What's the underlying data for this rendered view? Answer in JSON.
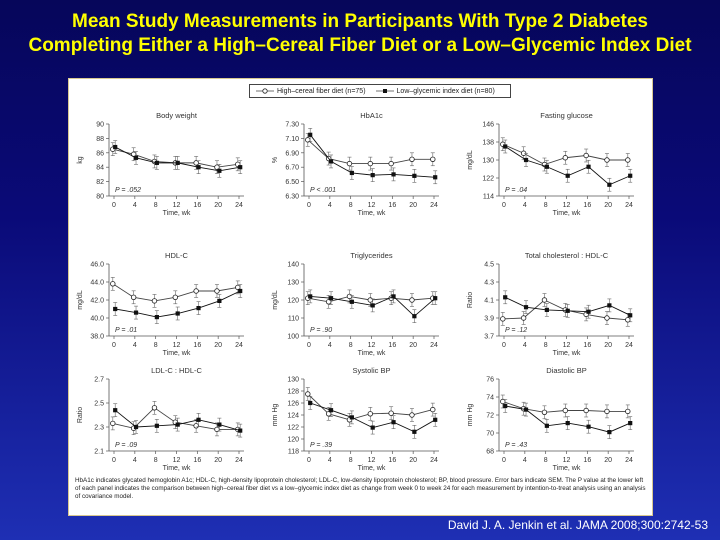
{
  "title_line1": "Mean Study Measurements in Participants With Type 2 Diabetes",
  "title_line2": "Completing Either a High–Cereal Fiber Diet or a Low–Glycemic Index Diet",
  "legend": {
    "high": "High–cereal fiber diet (n=75)",
    "low": "Low–glycemic index diet (n=80)"
  },
  "footnote": "HbA1c indicates glycated hemoglobin A1c; HDL-C, high-density lipoprotein cholesterol; LDL-C, low-density lipoprotein cholesterol; BP, blood pressure. Error bars indicate SEM. The P value at the lower left of each panel indicates the comparison between high–cereal fiber diet vs a low–glycemic index diet as change from week 0 to week 24 for each measurement by intention-to-treat analysis using an analysis of covariance model.",
  "citation": "David J. A. Jenkin et al. JAMA 2008;300:2742-53",
  "chart_data": [
    {
      "type": "line",
      "title": "Body weight",
      "ylabel": "kg",
      "xlabel": "Time, wk",
      "ylim": [
        80,
        90
      ],
      "yticks": [
        80,
        82,
        84,
        86,
        88,
        90
      ],
      "x": [
        0,
        4,
        8,
        12,
        16,
        20,
        24
      ],
      "p": "P = .052",
      "series": [
        {
          "key": "high",
          "values": [
            86.5,
            85.8,
            84.8,
            84.6,
            84.6,
            84.0,
            84.4
          ]
        },
        {
          "key": "low",
          "values": [
            86.8,
            85.3,
            84.6,
            84.6,
            84.0,
            83.5,
            84.0
          ]
        }
      ]
    },
    {
      "type": "line",
      "title": "HbA1c",
      "ylabel": "%",
      "xlabel": "Time, wk",
      "ylim": [
        6.3,
        7.3
      ],
      "yticks": [
        "6.30",
        "6.50",
        "6.70",
        "6.90",
        "7.10",
        "7.30"
      ],
      "x": [
        0,
        4,
        8,
        12,
        16,
        20,
        24
      ],
      "p": "P < .001",
      "series": [
        {
          "key": "high",
          "values": [
            7.08,
            6.82,
            6.75,
            6.75,
            6.75,
            6.81,
            6.81
          ]
        },
        {
          "key": "low",
          "values": [
            7.15,
            6.78,
            6.62,
            6.59,
            6.6,
            6.58,
            6.56
          ]
        }
      ]
    },
    {
      "type": "line",
      "title": "Fasting glucose",
      "ylabel": "mg/dL",
      "xlabel": "Time, wk",
      "ylim": [
        114,
        146
      ],
      "yticks": [
        114,
        122,
        130,
        138,
        146
      ],
      "x": [
        0,
        4,
        8,
        12,
        16,
        20,
        24
      ],
      "p": "P = .04",
      "series": [
        {
          "key": "high",
          "values": [
            137,
            133,
            128,
            131,
            132,
            130,
            130
          ]
        },
        {
          "key": "low",
          "values": [
            136,
            130,
            127,
            123,
            127,
            119,
            123
          ]
        }
      ]
    },
    {
      "type": "line",
      "title": "HDL-C",
      "ylabel": "mg/dL",
      "xlabel": "Time, wk",
      "ylim": [
        38,
        46
      ],
      "yticks": [
        "38.0",
        "40.0",
        "42.0",
        "44.0",
        "46.0"
      ],
      "x": [
        0,
        4,
        8,
        12,
        16,
        20,
        24
      ],
      "p": "P = .01",
      "series": [
        {
          "key": "high",
          "values": [
            43.8,
            42.3,
            41.9,
            42.3,
            43.0,
            43.0,
            43.4
          ]
        },
        {
          "key": "low",
          "values": [
            41.0,
            40.6,
            40.1,
            40.5,
            41.1,
            41.9,
            43.0
          ]
        }
      ]
    },
    {
      "type": "line",
      "title": "Triglycerides",
      "ylabel": "mg/dL",
      "xlabel": "Time, wk",
      "ylim": [
        100,
        140
      ],
      "yticks": [
        100,
        110,
        120,
        130,
        140
      ],
      "x": [
        0,
        4,
        8,
        12,
        16,
        20,
        24
      ],
      "p": "P = .90",
      "series": [
        {
          "key": "high",
          "values": [
            121,
            119,
            122,
            120,
            121,
            120,
            121
          ]
        },
        {
          "key": "low",
          "values": [
            122,
            121,
            119,
            117,
            122,
            111,
            121
          ]
        }
      ]
    },
    {
      "type": "line",
      "title": "Total cholesterol : HDL-C",
      "ylabel": "Ratio",
      "xlabel": "Time, wk",
      "ylim": [
        3.7,
        4.5
      ],
      "yticks": [
        "3.7",
        "3.9",
        "4.1",
        "4.3",
        "4.5"
      ],
      "x": [
        0,
        4,
        8,
        12,
        16,
        20,
        24
      ],
      "p": "P = .12",
      "series": [
        {
          "key": "high",
          "values": [
            3.89,
            3.9,
            4.1,
            3.99,
            3.94,
            3.9,
            3.88
          ]
        },
        {
          "key": "low",
          "values": [
            4.13,
            4.02,
            3.99,
            3.98,
            3.97,
            4.04,
            3.93
          ]
        }
      ]
    },
    {
      "type": "line",
      "title": "LDL-C : HDL-C",
      "ylabel": "Ratio",
      "xlabel": "Time, wk",
      "ylim": [
        2.1,
        2.7
      ],
      "yticks": [
        2.1,
        2.3,
        2.5,
        2.7
      ],
      "x": [
        0,
        4,
        8,
        12,
        16,
        20,
        24
      ],
      "p": "P = .09",
      "series": [
        {
          "key": "high",
          "values": [
            2.33,
            2.29,
            2.46,
            2.34,
            2.31,
            2.28,
            2.28
          ]
        },
        {
          "key": "low",
          "values": [
            2.44,
            2.3,
            2.31,
            2.32,
            2.36,
            2.32,
            2.27
          ]
        }
      ]
    },
    {
      "type": "line",
      "title": "Systolic BP",
      "ylabel": "mm Hg",
      "xlabel": "Time, wk",
      "ylim": [
        118,
        130
      ],
      "yticks": [
        118,
        120,
        122,
        124,
        126,
        128,
        130
      ],
      "x": [
        0,
        4,
        8,
        12,
        16,
        20,
        24
      ],
      "p": "P = .39",
      "series": [
        {
          "key": "high",
          "values": [
            127.5,
            124.2,
            123.2,
            124.2,
            124.3,
            124.0,
            124.9
          ]
        },
        {
          "key": "low",
          "values": [
            126.0,
            124.8,
            123.6,
            121.9,
            122.8,
            121.2,
            123.2
          ]
        }
      ]
    },
    {
      "type": "line",
      "title": "Diastolic BP",
      "ylabel": "mm Hg",
      "xlabel": "Time, wk",
      "ylim": [
        68,
        76
      ],
      "yticks": [
        68,
        70,
        72,
        74,
        76
      ],
      "x": [
        0,
        4,
        8,
        12,
        16,
        20,
        24
      ],
      "p": "P = .43",
      "series": [
        {
          "key": "high",
          "values": [
            73.5,
            72.7,
            72.3,
            72.5,
            72.5,
            72.4,
            72.4
          ]
        },
        {
          "key": "low",
          "values": [
            73.0,
            72.6,
            70.8,
            71.1,
            70.7,
            70.1,
            71.1
          ]
        }
      ]
    }
  ]
}
